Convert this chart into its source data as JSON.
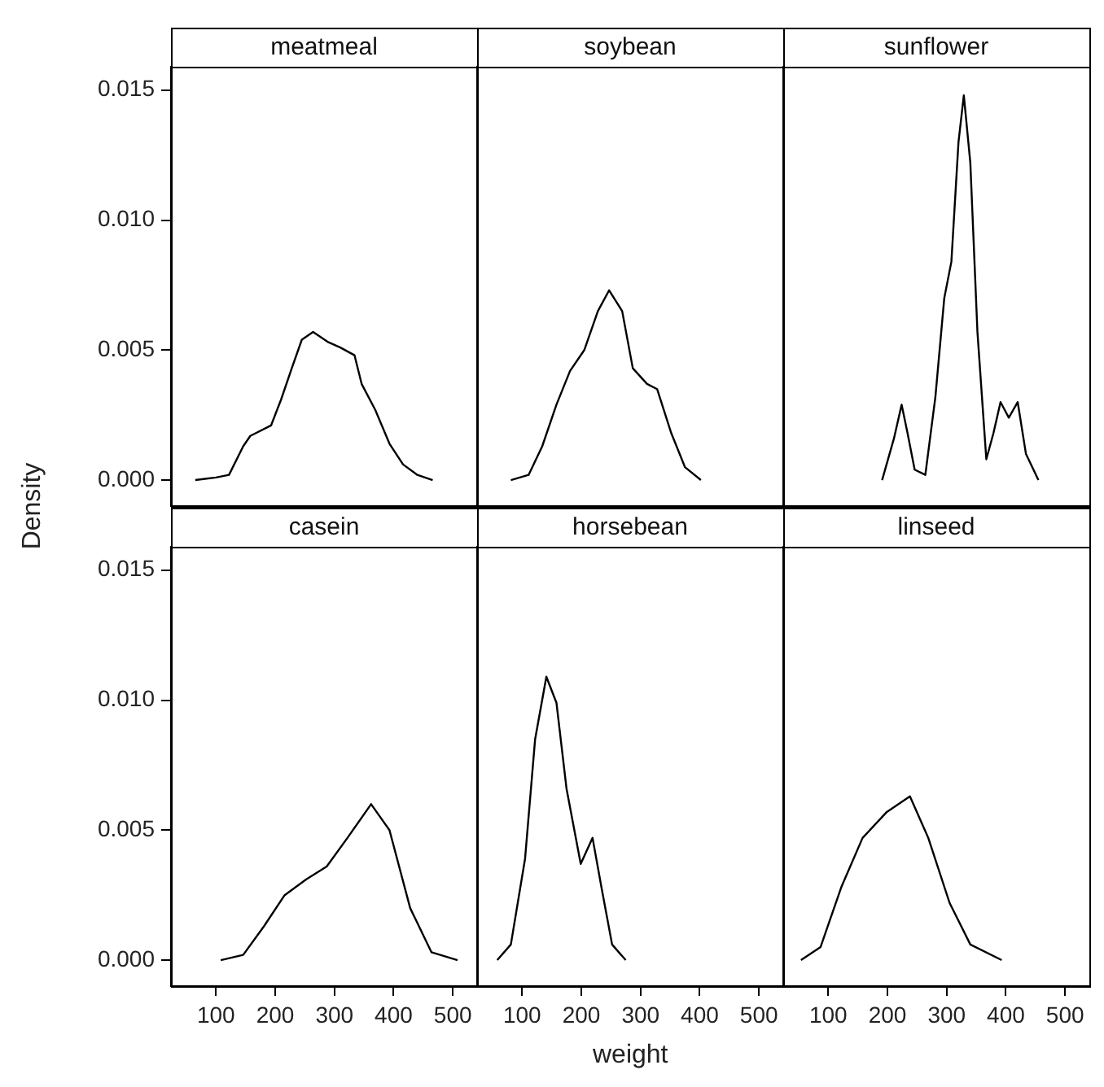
{
  "chart_data": [
    {
      "type": "line",
      "title": "meatmeal",
      "x": [
        65,
        100,
        122,
        146,
        158,
        193,
        210,
        228,
        245,
        264,
        290,
        310,
        334,
        346,
        369,
        393,
        416,
        440,
        466
      ],
      "values": [
        0,
        0.0001,
        0.0002,
        0.0013,
        0.0017,
        0.0021,
        0.0031,
        0.0043,
        0.0054,
        0.0057,
        0.0053,
        0.0051,
        0.0048,
        0.0037,
        0.0027,
        0.0014,
        0.0006,
        0.0002,
        0
      ],
      "color": "#000000",
      "xlim": [
        24,
        541
      ],
      "ylim": [
        -0.001,
        0.0159
      ],
      "yticks": [
        {
          "value": 0,
          "label": "0.000"
        },
        {
          "value": 0.005,
          "label": "0.005"
        },
        {
          "value": 0.01,
          "label": "0.010"
        },
        {
          "value": 0.015,
          "label": "0.015"
        }
      ],
      "tick_labels": "y",
      "marker": "none"
    },
    {
      "type": "line",
      "title": "soybean",
      "x": [
        81,
        111,
        134,
        158,
        181,
        205,
        228,
        247,
        269,
        287,
        311,
        328,
        352,
        375,
        402
      ],
      "values": [
        0,
        0.0002,
        0.0013,
        0.0029,
        0.0042,
        0.005,
        0.0065,
        0.0073,
        0.0065,
        0.0043,
        0.0037,
        0.0035,
        0.0018,
        0.0005,
        0
      ],
      "color": "#000000",
      "xlim": [
        24,
        541
      ],
      "ylim": [
        -0.001,
        0.0159
      ],
      "tick_labels": false,
      "marker": "none"
    },
    {
      "type": "line",
      "title": "sunflower",
      "x": [
        191,
        211,
        224,
        234,
        246,
        264,
        281,
        296,
        308,
        320,
        329,
        340,
        352,
        367,
        379,
        391,
        405,
        420,
        434,
        455
      ],
      "values": [
        0,
        0.0016,
        0.0029,
        0.0018,
        0.0004,
        0.0002,
        0.0032,
        0.007,
        0.0084,
        0.013,
        0.0148,
        0.0122,
        0.0057,
        0.0008,
        0.0018,
        0.003,
        0.0024,
        0.003,
        0.001,
        0
      ],
      "color": "#000000",
      "xlim": [
        24,
        541
      ],
      "ylim": [
        -0.001,
        0.0159
      ],
      "tick_labels": false,
      "marker": "none"
    },
    {
      "type": "line",
      "title": "casein",
      "ylabel": "Density",
      "x": [
        108,
        146,
        181,
        216,
        252,
        287,
        322,
        362,
        393,
        428,
        464,
        508
      ],
      "values": [
        0,
        0.0002,
        0.0013,
        0.0025,
        0.0031,
        0.0036,
        0.0047,
        0.006,
        0.005,
        0.002,
        0.0003,
        0
      ],
      "color": "#000000",
      "xlim": [
        24,
        541
      ],
      "ylim": [
        -0.001,
        0.0159
      ],
      "xticks": [
        100,
        200,
        300,
        400,
        500
      ],
      "yticks": [
        {
          "value": 0,
          "label": "0.000"
        },
        {
          "value": 0.005,
          "label": "0.005"
        },
        {
          "value": 0.01,
          "label": "0.010"
        },
        {
          "value": 0.015,
          "label": "0.015"
        }
      ],
      "marker": "none"
    },
    {
      "type": "line",
      "title": "horsebean",
      "xlabel": "weight",
      "x": [
        58,
        81,
        105,
        122,
        141,
        158,
        175,
        199,
        219,
        234,
        252,
        275
      ],
      "values": [
        0,
        0.0006,
        0.0039,
        0.0085,
        0.0109,
        0.0099,
        0.0066,
        0.0037,
        0.0047,
        0.0028,
        0.0006,
        0
      ],
      "color": "#000000",
      "xlim": [
        24,
        541
      ],
      "ylim": [
        -0.001,
        0.0159
      ],
      "xticks": [
        100,
        200,
        300,
        400,
        500
      ],
      "tick_labels": "x",
      "marker": "none"
    },
    {
      "type": "line",
      "title": "linseed",
      "x": [
        54,
        87,
        122,
        158,
        199,
        238,
        269,
        305,
        340,
        393
      ],
      "values": [
        0,
        0.0005,
        0.0028,
        0.0047,
        0.0057,
        0.0063,
        0.0047,
        0.0022,
        0.0006,
        0
      ],
      "color": "#000000",
      "xlim": [
        24,
        541
      ],
      "ylim": [
        -0.001,
        0.0159
      ],
      "xticks": [
        100,
        200,
        300,
        400,
        500
      ],
      "tick_labels": "x",
      "marker": "none"
    }
  ]
}
